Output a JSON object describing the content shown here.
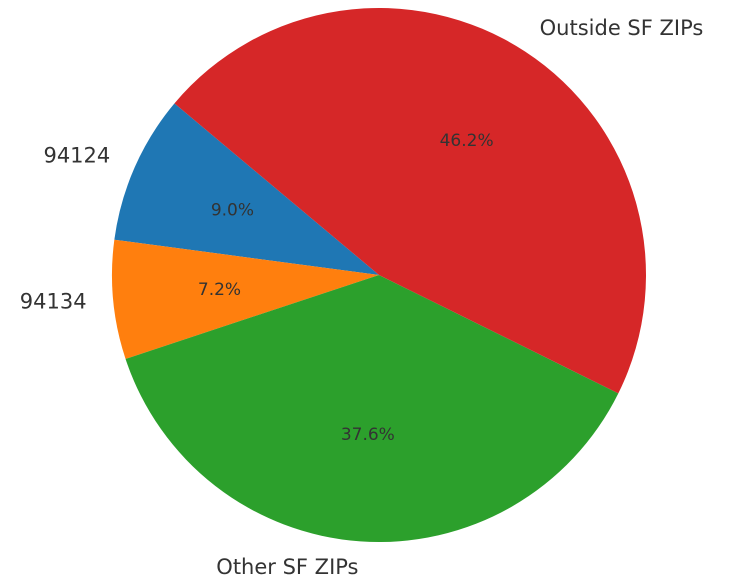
{
  "chart_data": {
    "type": "pie",
    "categories": [
      "94124",
      "94134",
      "Other SF ZIPs",
      "Outside SF ZIPs"
    ],
    "values": [
      9.0,
      7.2,
      37.6,
      46.2
    ],
    "value_labels": [
      "9.0%",
      "7.2%",
      "37.6%",
      "46.2%"
    ],
    "colors": [
      "#1f77b4",
      "#ff7f0e",
      "#2ca02c",
      "#d62728"
    ]
  }
}
